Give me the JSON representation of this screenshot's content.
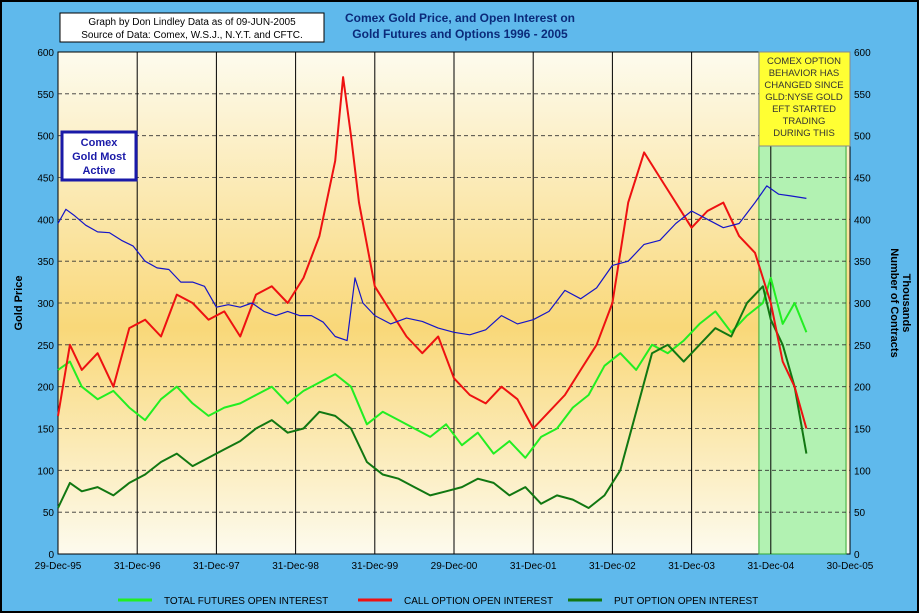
{
  "credit": {
    "line1": "Graph by Don Lindley  Data as of 09-JUN-2005",
    "line2": "Source of Data: Comex, W.S.J., N.Y.T. and CFTC."
  },
  "title": {
    "line1": "Comex Gold Price, and Open Interest on",
    "line2": "Gold Futures and Options 1996 - 2005"
  },
  "axes": {
    "left_label": "Gold Price",
    "right_label_1": "Number of Contracts",
    "right_label_2": "Thousands"
  },
  "annotations": {
    "blue_box": [
      "Comex",
      "Gold Most",
      "Active"
    ],
    "note_box": [
      "COMEX OPTION",
      "BEHAVIOR HAS",
      "CHANGED SINCE",
      "GLD:NYSE GOLD",
      "EFT STARTED",
      "TRADING",
      "DURING THIS"
    ]
  },
  "legend": [
    {
      "label": "TOTAL FUTURES OPEN INTEREST",
      "color": "#22ee22"
    },
    {
      "label": "CALL OPTION OPEN INTEREST",
      "color": "#ee1111"
    },
    {
      "label": "PUT OPTION OPEN INTEREST",
      "color": "#117711"
    }
  ],
  "colors": {
    "outer_background": "#5fb9ec",
    "plot_gradient_top": "#fdfbee",
    "plot_gradient_mid": "#f9d879",
    "highlight_region": "#b2f2b2",
    "gold_price_line": "#1515c8"
  },
  "chart_data": {
    "type": "line",
    "x_tick_labels": [
      "29-Dec-95",
      "31-Dec-96",
      "31-Dec-97",
      "31-Dec-98",
      "31-Dec-99",
      "29-Dec-00",
      "31-Dec-01",
      "31-Dec-02",
      "31-Dec-03",
      "31-Dec-04",
      "30-Dec-05"
    ],
    "x_range": [
      1996.0,
      2006.0
    ],
    "ylim_left": [
      0,
      600
    ],
    "ylim_right": [
      0,
      600
    ],
    "y_ticks": [
      0,
      50,
      100,
      150,
      200,
      250,
      300,
      350,
      400,
      450,
      500,
      550,
      600
    ],
    "grid": "horizontal dashed every 50, vertical solid at year boundaries",
    "highlighted_period": [
      2004.85,
      2005.95
    ],
    "series": [
      {
        "name": "Comex Gold Most Active",
        "axis": "left",
        "x": [
          1996.0,
          1996.1,
          1996.2,
          1996.35,
          1996.5,
          1996.65,
          1996.8,
          1996.95,
          1997.1,
          1997.25,
          1997.4,
          1997.55,
          1997.7,
          1997.85,
          1998.0,
          1998.15,
          1998.3,
          1998.45,
          1998.6,
          1998.75,
          1998.9,
          1999.05,
          1999.2,
          1999.35,
          1999.5,
          1999.65,
          1999.75,
          1999.85,
          2000.0,
          2000.2,
          2000.4,
          2000.6,
          2000.8,
          2001.0,
          2001.2,
          2001.4,
          2001.6,
          2001.8,
          2002.0,
          2002.2,
          2002.4,
          2002.6,
          2002.8,
          2003.0,
          2003.2,
          2003.4,
          2003.6,
          2003.8,
          2004.0,
          2004.2,
          2004.4,
          2004.6,
          2004.8,
          2004.95,
          2005.1,
          2005.25,
          2005.45
        ],
        "values": [
          395,
          412,
          405,
          393,
          385,
          384,
          375,
          368,
          350,
          342,
          340,
          325,
          325,
          320,
          295,
          298,
          295,
          300,
          290,
          285,
          290,
          285,
          285,
          277,
          260,
          255,
          330,
          300,
          285,
          275,
          282,
          278,
          270,
          265,
          262,
          268,
          285,
          275,
          280,
          290,
          315,
          305,
          318,
          345,
          350,
          370,
          375,
          395,
          410,
          400,
          390,
          395,
          420,
          440,
          430,
          428,
          425
        ]
      },
      {
        "name": "Total Futures Open Interest",
        "axis": "right",
        "x": [
          1996.0,
          1996.15,
          1996.3,
          1996.5,
          1996.7,
          1996.9,
          1997.1,
          1997.3,
          1997.5,
          1997.7,
          1997.9,
          1998.1,
          1998.3,
          1998.5,
          1998.7,
          1998.9,
          1999.1,
          1999.3,
          1999.5,
          1999.7,
          1999.9,
          2000.1,
          2000.3,
          2000.5,
          2000.7,
          2000.9,
          2001.1,
          2001.3,
          2001.5,
          2001.7,
          2001.9,
          2002.1,
          2002.3,
          2002.5,
          2002.7,
          2002.9,
          2003.1,
          2003.3,
          2003.5,
          2003.7,
          2003.9,
          2004.1,
          2004.3,
          2004.5,
          2004.7,
          2004.9,
          2005.0,
          2005.15,
          2005.3,
          2005.45
        ],
        "values": [
          220,
          230,
          200,
          185,
          195,
          175,
          160,
          185,
          200,
          180,
          165,
          175,
          180,
          190,
          200,
          180,
          195,
          205,
          215,
          200,
          155,
          170,
          160,
          150,
          140,
          155,
          130,
          145,
          120,
          135,
          115,
          140,
          150,
          175,
          190,
          225,
          240,
          220,
          250,
          240,
          255,
          275,
          290,
          265,
          285,
          300,
          330,
          275,
          300,
          265
        ]
      },
      {
        "name": "Call Option Open Interest",
        "axis": "right",
        "x": [
          1996.0,
          1996.15,
          1996.3,
          1996.5,
          1996.7,
          1996.9,
          1997.1,
          1997.3,
          1997.5,
          1997.7,
          1997.9,
          1998.1,
          1998.3,
          1998.5,
          1998.7,
          1998.9,
          1999.1,
          1999.3,
          1999.5,
          1999.6,
          1999.7,
          1999.8,
          2000.0,
          2000.2,
          2000.4,
          2000.6,
          2000.8,
          2001.0,
          2001.2,
          2001.4,
          2001.6,
          2001.8,
          2002.0,
          2002.2,
          2002.4,
          2002.6,
          2002.8,
          2003.0,
          2003.2,
          2003.4,
          2003.6,
          2003.8,
          2004.0,
          2004.2,
          2004.4,
          2004.6,
          2004.8,
          2005.0,
          2005.15,
          2005.3,
          2005.45
        ],
        "values": [
          165,
          250,
          220,
          240,
          200,
          270,
          280,
          260,
          310,
          300,
          280,
          290,
          260,
          310,
          320,
          300,
          330,
          380,
          470,
          570,
          500,
          420,
          320,
          290,
          260,
          240,
          260,
          210,
          190,
          180,
          200,
          185,
          150,
          170,
          190,
          220,
          250,
          300,
          420,
          480,
          450,
          420,
          390,
          410,
          420,
          380,
          360,
          300,
          230,
          200,
          150
        ]
      },
      {
        "name": "Put Option Open Interest",
        "axis": "right",
        "x": [
          1996.0,
          1996.15,
          1996.3,
          1996.5,
          1996.7,
          1996.9,
          1997.1,
          1997.3,
          1997.5,
          1997.7,
          1997.9,
          1998.1,
          1998.3,
          1998.5,
          1998.7,
          1998.9,
          1999.1,
          1999.3,
          1999.5,
          1999.7,
          1999.9,
          2000.1,
          2000.3,
          2000.5,
          2000.7,
          2000.9,
          2001.1,
          2001.3,
          2001.5,
          2001.7,
          2001.9,
          2002.1,
          2002.3,
          2002.5,
          2002.7,
          2002.9,
          2003.1,
          2003.3,
          2003.5,
          2003.7,
          2003.9,
          2004.1,
          2004.3,
          2004.5,
          2004.7,
          2004.9,
          2005.0,
          2005.15,
          2005.3,
          2005.45
        ],
        "values": [
          55,
          85,
          75,
          80,
          70,
          85,
          95,
          110,
          120,
          105,
          115,
          125,
          135,
          150,
          160,
          145,
          150,
          170,
          165,
          150,
          110,
          95,
          90,
          80,
          70,
          75,
          80,
          90,
          85,
          70,
          80,
          60,
          70,
          65,
          55,
          70,
          100,
          170,
          240,
          250,
          230,
          250,
          270,
          260,
          300,
          320,
          280,
          250,
          200,
          120
        ]
      }
    ]
  }
}
